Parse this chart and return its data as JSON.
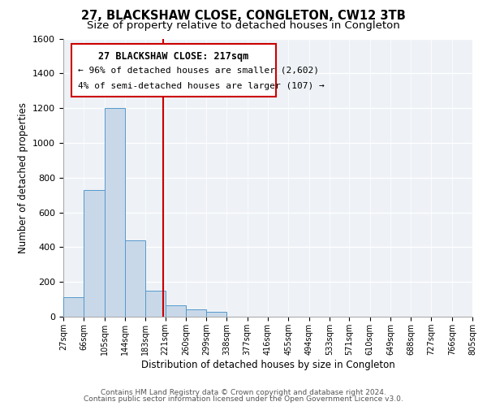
{
  "title": "27, BLACKSHAW CLOSE, CONGLETON, CW12 3TB",
  "subtitle": "Size of property relative to detached houses in Congleton",
  "xlabel": "Distribution of detached houses by size in Congleton",
  "ylabel": "Number of detached properties",
  "bar_edges": [
    27,
    66,
    105,
    144,
    183,
    221,
    260,
    299,
    338,
    377,
    416,
    455,
    494,
    533,
    571,
    610,
    649,
    688,
    727,
    766,
    805
  ],
  "bar_heights": [
    110,
    730,
    1200,
    440,
    150,
    65,
    40,
    30,
    0,
    0,
    0,
    0,
    0,
    0,
    0,
    0,
    0,
    0,
    0,
    0
  ],
  "bar_color": "#c8d8e8",
  "bar_edge_color": "#5599cc",
  "property_line_x": 217,
  "property_line_color": "#cc0000",
  "ylim": [
    0,
    1600
  ],
  "yticks": [
    0,
    200,
    400,
    600,
    800,
    1000,
    1200,
    1400,
    1600
  ],
  "annotation_box_text_line1": "27 BLACKSHAW CLOSE: 217sqm",
  "annotation_box_text_line2": "← 96% of detached houses are smaller (2,602)",
  "annotation_box_text_line3": "4% of semi-detached houses are larger (107) →",
  "footer_line1": "Contains HM Land Registry data © Crown copyright and database right 2024.",
  "footer_line2": "Contains public sector information licensed under the Open Government Licence v3.0.",
  "bg_color": "#eef2f6",
  "title_fontsize": 10.5,
  "subtitle_fontsize": 9.5,
  "tick_label_fontsize": 7,
  "axis_label_fontsize": 8.5
}
